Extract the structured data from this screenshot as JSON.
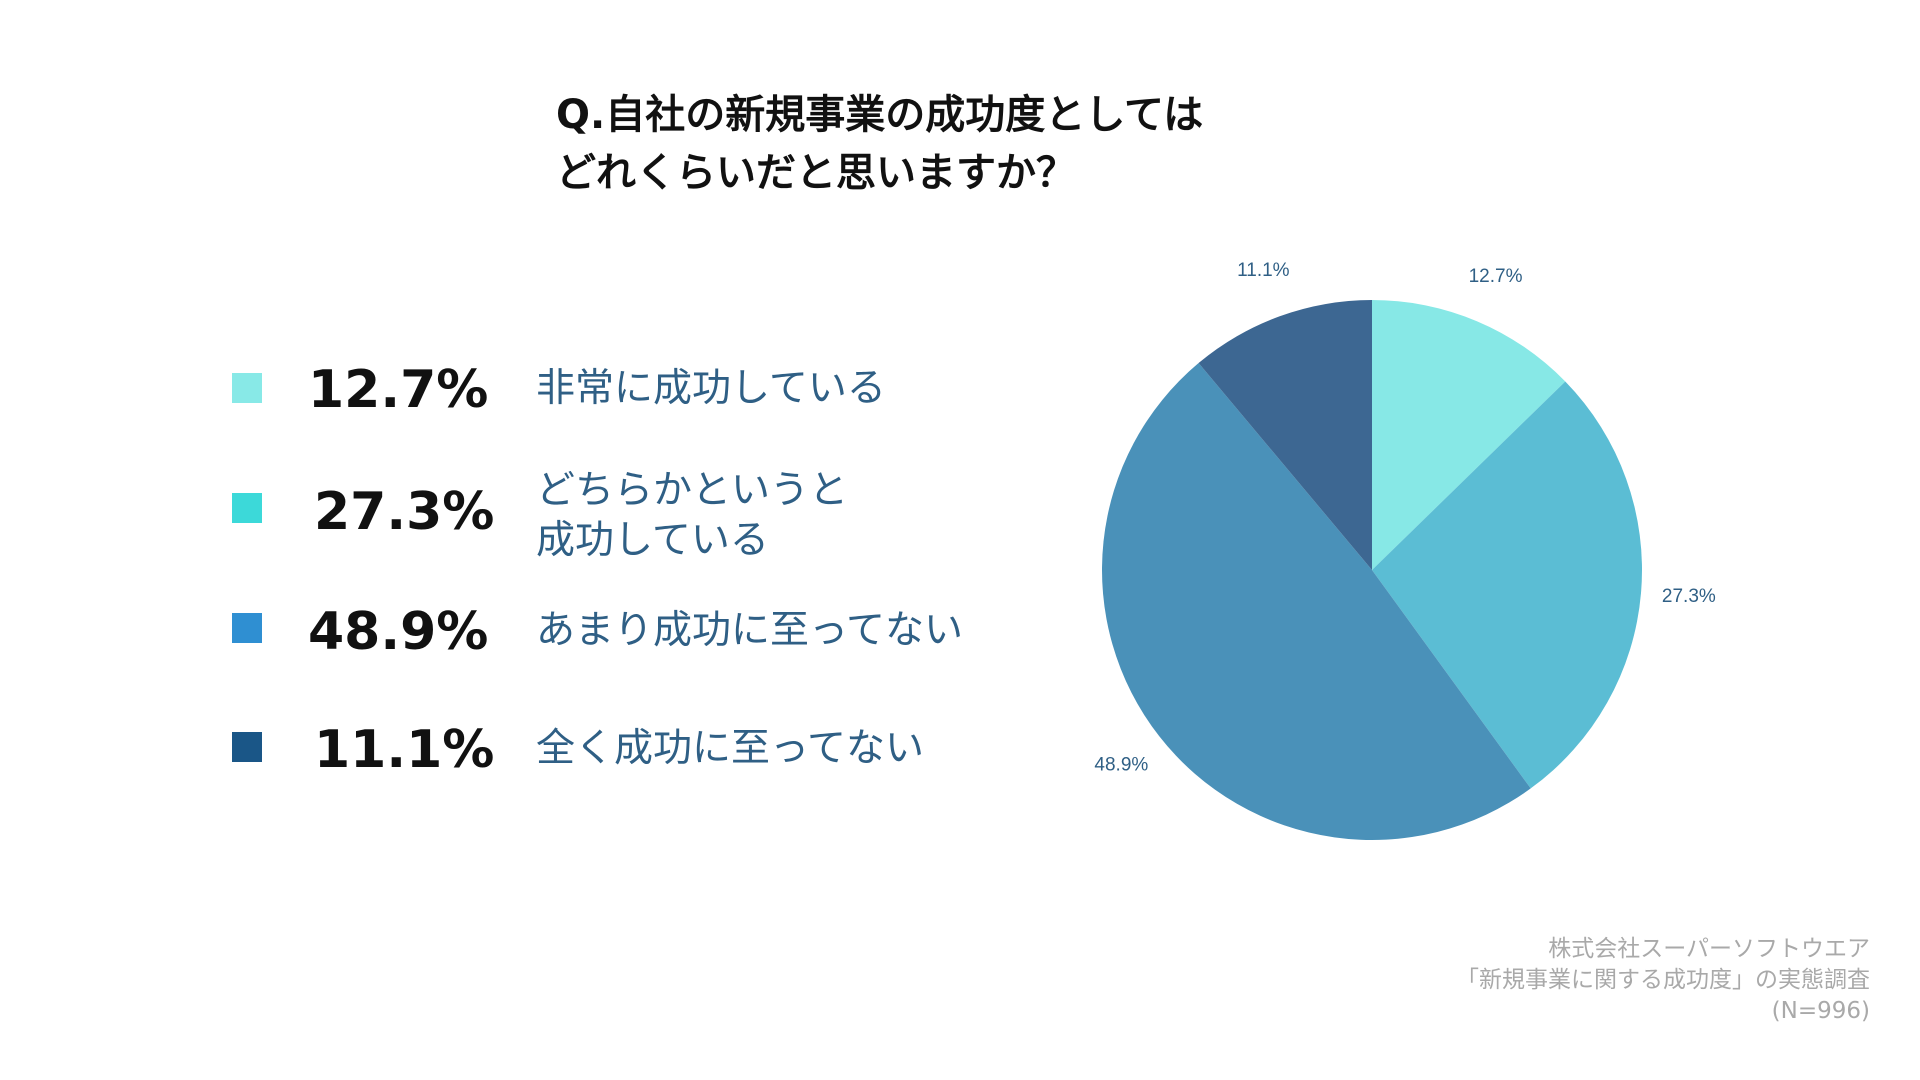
{
  "chart_data": {
    "type": "pie",
    "title": [
      "Q.自社の新規事業の成功度としては",
      "どれくらいだと思いますか？"
    ],
    "categories": [
      "非常に成功している",
      "どちらかというと成功している",
      "あまり成功に至ってない",
      "全く成功に至ってない"
    ],
    "values": [
      12.7,
      27.3,
      48.9,
      11.1
    ],
    "value_labels": [
      "12.7%",
      "27.3%",
      "48.9%",
      "11.1%"
    ],
    "slice_colors": [
      "#87e8e6",
      "#5bbdd4",
      "#4a91b9",
      "#3d6792"
    ],
    "legend_colors": [
      "#88e9e7",
      "#3cd9d9",
      "#2f8fd2",
      "#1a5687"
    ],
    "start_angle": "12 o'clock",
    "direction": "clockwise",
    "legend_placement": "left"
  },
  "legend": {
    "items": [
      {
        "pct": "12.7%",
        "label_lines": [
          "非常に成功している"
        ]
      },
      {
        "pct": "27.3%",
        "label_lines": [
          "どちらかというと",
          "成功している"
        ]
      },
      {
        "pct": "48.9%",
        "label_lines": [
          "あまり成功に至ってない"
        ]
      },
      {
        "pct": "11.1%",
        "label_lines": [
          "全く成功に至ってない"
        ]
      }
    ]
  },
  "source": {
    "lines": [
      "株式会社スーパーソフトウエア",
      "「新規事業に関する成功度」の実態調査",
      "(N=996)"
    ]
  }
}
